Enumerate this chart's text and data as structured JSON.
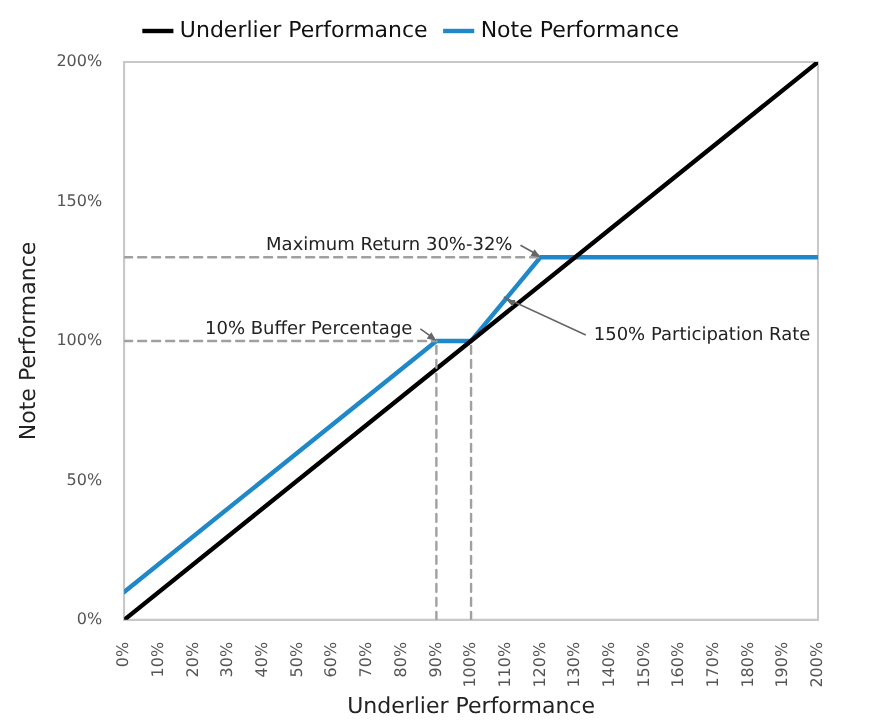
{
  "chart_data": {
    "type": "line",
    "xlabel": "Underlier Performance",
    "ylabel": "Note Performance",
    "xlim": [
      0,
      200
    ],
    "ylim": [
      0,
      200
    ],
    "xticks": [
      {
        "value": 0,
        "label": "0%"
      },
      {
        "value": 10,
        "label": "10%"
      },
      {
        "value": 20,
        "label": "20%"
      },
      {
        "value": 30,
        "label": "30%"
      },
      {
        "value": 40,
        "label": "40%"
      },
      {
        "value": 50,
        "label": "50%"
      },
      {
        "value": 60,
        "label": "60%"
      },
      {
        "value": 70,
        "label": "70%"
      },
      {
        "value": 80,
        "label": "80%"
      },
      {
        "value": 90,
        "label": "90%"
      },
      {
        "value": 100,
        "label": "100%"
      },
      {
        "value": 110,
        "label": "110%"
      },
      {
        "value": 120,
        "label": "120%"
      },
      {
        "value": 130,
        "label": "130%"
      },
      {
        "value": 140,
        "label": "140%"
      },
      {
        "value": 150,
        "label": "150%"
      },
      {
        "value": 160,
        "label": "160%"
      },
      {
        "value": 170,
        "label": "170%"
      },
      {
        "value": 180,
        "label": "180%"
      },
      {
        "value": 190,
        "label": "190%"
      },
      {
        "value": 200,
        "label": "200%"
      }
    ],
    "yticks": [
      {
        "value": 0,
        "label": "0%"
      },
      {
        "value": 50,
        "label": "50%"
      },
      {
        "value": 100,
        "label": "100%"
      },
      {
        "value": 150,
        "label": "150%"
      },
      {
        "value": 200,
        "label": "200%"
      }
    ],
    "grid": false,
    "legend": "top",
    "marker": "none",
    "series": [
      {
        "color": "#a0a0a0",
        "line_style": "dashed",
        "x": [
          0,
          120
        ],
        "values": [
          130,
          130
        ]
      },
      {
        "color": "#a0a0a0",
        "line_style": "dashed",
        "x": [
          0,
          90
        ],
        "values": [
          100,
          100
        ]
      },
      {
        "color": "#a0a0a0",
        "line_style": "dashed",
        "x": [
          90,
          90
        ],
        "values": [
          0,
          100
        ]
      },
      {
        "color": "#a0a0a0",
        "line_style": "dashed",
        "x": [
          100,
          100
        ],
        "values": [
          0,
          100
        ]
      },
      {
        "name": "Underlier Performance",
        "color": "#000000",
        "line_style": "solid",
        "x": [
          0,
          200
        ],
        "values": [
          0,
          200
        ]
      },
      {
        "name": "Note Performance",
        "color": "#1e88c8",
        "line_style": "solid",
        "x": [
          0,
          90,
          100,
          120,
          200
        ],
        "values": [
          10,
          100,
          100,
          130,
          130
        ]
      }
    ],
    "annotations": [
      {
        "text": "Maximum Return 30%-32%",
        "x": 120,
        "y": 130
      },
      {
        "text": "10% Buffer Percentage",
        "x": 90,
        "y": 100
      },
      {
        "text": "150% Participation Rate",
        "x": 110,
        "y": 115
      }
    ]
  }
}
